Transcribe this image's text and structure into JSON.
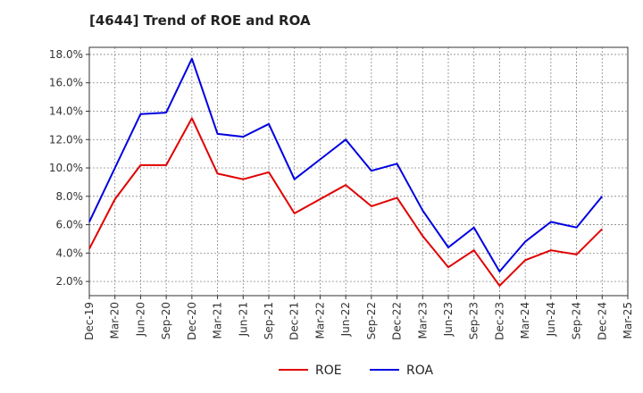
{
  "chart_data": {
    "type": "line",
    "title": "[4644]  Trend of ROE and ROA",
    "x": [
      "Dec-19",
      "Mar-20",
      "Jun-20",
      "Sep-20",
      "Dec-20",
      "Mar-21",
      "Jun-21",
      "Sep-21",
      "Dec-21",
      "Mar-22",
      "Jun-22",
      "Sep-22",
      "Dec-22",
      "Mar-23",
      "Jun-23",
      "Sep-23",
      "Dec-23",
      "Mar-24",
      "Jun-24",
      "Sep-24",
      "Dec-24",
      "Mar-25"
    ],
    "y_ticks": [
      "2.0%",
      "4.0%",
      "6.0%",
      "8.0%",
      "10.0%",
      "12.0%",
      "14.0%",
      "16.0%",
      "18.0%"
    ],
    "ylim": [
      1.0,
      18.5
    ],
    "grid": true,
    "legend_position": "bottom-center",
    "series": [
      {
        "name": "ROE",
        "color": "#e00000",
        "values": [
          4.3,
          7.8,
          10.2,
          10.2,
          13.5,
          9.6,
          9.2,
          9.7,
          6.8,
          7.8,
          8.8,
          7.3,
          7.9,
          5.2,
          3.0,
          4.2,
          1.7,
          3.5,
          4.2,
          3.9,
          5.7,
          null
        ]
      },
      {
        "name": "ROA",
        "color": "#0000e0",
        "values": [
          6.2,
          10.0,
          13.8,
          13.9,
          17.7,
          12.4,
          12.2,
          13.1,
          9.2,
          10.6,
          12.0,
          9.8,
          10.3,
          7.0,
          4.4,
          5.8,
          2.7,
          4.8,
          6.2,
          5.8,
          8.0,
          null
        ]
      }
    ]
  }
}
